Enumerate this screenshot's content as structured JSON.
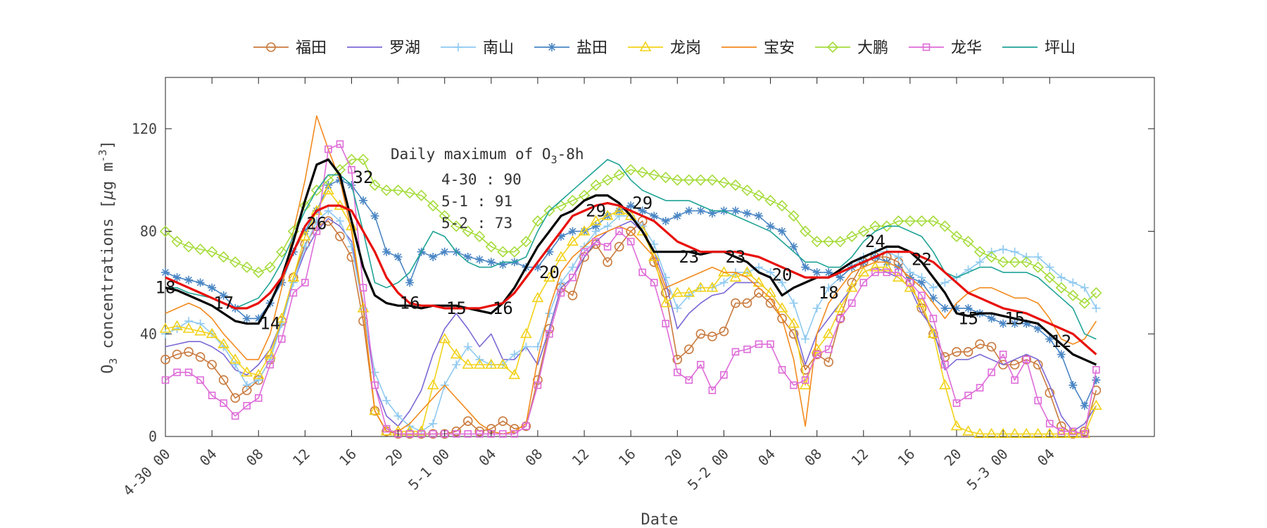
{
  "chart_data": {
    "type": "line",
    "title": "",
    "xlabel": "Date",
    "ylabel": "O3 concentrations [μg m-3]",
    "ylabel_parts": {
      "main": "O",
      "sub": "3",
      "rest": " concentrations [",
      "mu": "μ",
      "unit": "g m",
      "sup": "-3",
      "close": "]"
    },
    "ylim": [
      0,
      140
    ],
    "yticks": [
      0,
      40,
      80,
      120
    ],
    "xlim": [
      0,
      85
    ],
    "x_unit": "hours since 4-30 00",
    "xticks": [
      {
        "x": 0,
        "label": "4-30 00"
      },
      {
        "x": 4,
        "label": "04"
      },
      {
        "x": 8,
        "label": "08"
      },
      {
        "x": 12,
        "label": "12"
      },
      {
        "x": 16,
        "label": "16"
      },
      {
        "x": 20,
        "label": "20"
      },
      {
        "x": 24,
        "label": "5-1 00"
      },
      {
        "x": 28,
        "label": "04"
      },
      {
        "x": 32,
        "label": "08"
      },
      {
        "x": 36,
        "label": "12"
      },
      {
        "x": 40,
        "label": "16"
      },
      {
        "x": 44,
        "label": "20"
      },
      {
        "x": 48,
        "label": "5-2 00"
      },
      {
        "x": 52,
        "label": "04"
      },
      {
        "x": 56,
        "label": "08"
      },
      {
        "x": 60,
        "label": "12"
      },
      {
        "x": 64,
        "label": "16"
      },
      {
        "x": 68,
        "label": "20"
      },
      {
        "x": 72,
        "label": "5-3 00"
      },
      {
        "x": 76,
        "label": "04"
      }
    ],
    "grid": false,
    "legend_position": "top",
    "annotation": {
      "title_main": "Daily maximum of O",
      "title_sub": "3",
      "title_rest": "-8h",
      "lines": [
        "4-30 : 90",
        "5-1 : 91",
        "5-2 : 73"
      ]
    },
    "series": [
      {
        "name": "福田",
        "color": "#c97a3e",
        "marker": "circle",
        "values": [
          30,
          32,
          33,
          31,
          28,
          22,
          15,
          18,
          22,
          30,
          45,
          62,
          75,
          82,
          84,
          78,
          70,
          45,
          10,
          2,
          1,
          1,
          1,
          1,
          1,
          2,
          6,
          2,
          3,
          6,
          3,
          4,
          22,
          42,
          58,
          55,
          70,
          75,
          68,
          74,
          80,
          84,
          68,
          56,
          30,
          34,
          40,
          39,
          41,
          52,
          52,
          56,
          52,
          46,
          40,
          26,
          32,
          29,
          46,
          60,
          68,
          70,
          70,
          68,
          60,
          50,
          40,
          31,
          33,
          33,
          36,
          35,
          28,
          28,
          30,
          28,
          17,
          4,
          1,
          2,
          18
        ]
      },
      {
        "name": "罗湖",
        "color": "#7b68d4",
        "marker": "none",
        "values": [
          35,
          36,
          37,
          37,
          35,
          32,
          26,
          24,
          28,
          34,
          45,
          60,
          72,
          80,
          85,
          82,
          76,
          52,
          20,
          8,
          4,
          10,
          18,
          32,
          42,
          48,
          42,
          35,
          40,
          30,
          30,
          35,
          28,
          42,
          58,
          62,
          70,
          76,
          80,
          82,
          84,
          80,
          72,
          60,
          42,
          48,
          52,
          55,
          56,
          60,
          60,
          60,
          56,
          50,
          44,
          28,
          40,
          46,
          52,
          58,
          64,
          66,
          64,
          62,
          58,
          48,
          42,
          26,
          30,
          30,
          32,
          30,
          28,
          30,
          32,
          30,
          20,
          8,
          2,
          5,
          12
        ]
      },
      {
        "name": "南山",
        "color": "#8ec9f0",
        "marker": "plus",
        "values": [
          40,
          42,
          45,
          44,
          40,
          35,
          28,
          20,
          22,
          30,
          44,
          60,
          74,
          84,
          88,
          84,
          74,
          50,
          25,
          14,
          8,
          4,
          2,
          5,
          20,
          28,
          35,
          30,
          28,
          28,
          32,
          35,
          35,
          48,
          60,
          66,
          74,
          80,
          82,
          86,
          86,
          82,
          75,
          62,
          50,
          55,
          58,
          58,
          60,
          64,
          64,
          66,
          64,
          60,
          52,
          38,
          50,
          58,
          62,
          66,
          70,
          72,
          72,
          70,
          64,
          62,
          58,
          60,
          62,
          65,
          68,
          72,
          73,
          72,
          70,
          70,
          66,
          62,
          60,
          58,
          50
        ]
      },
      {
        "name": "盐田",
        "color": "#4a86c4",
        "marker": "asterisk",
        "values": [
          64,
          62,
          61,
          60,
          58,
          55,
          50,
          46,
          46,
          52,
          60,
          72,
          80,
          88,
          98,
          100,
          98,
          92,
          86,
          72,
          70,
          60,
          72,
          70,
          72,
          72,
          70,
          69,
          68,
          67,
          68,
          66,
          66,
          72,
          78,
          80,
          80,
          82,
          86,
          88,
          90,
          88,
          86,
          84,
          86,
          88,
          88,
          87,
          88,
          88,
          87,
          86,
          82,
          80,
          74,
          66,
          64,
          64,
          62,
          66,
          68,
          70,
          68,
          66,
          62,
          60,
          54,
          50,
          50,
          50,
          48,
          46,
          44,
          44,
          44,
          42,
          38,
          32,
          20,
          12,
          22
        ]
      },
      {
        "name": "龙岗",
        "color": "#f2d21a",
        "marker": "triangle",
        "values": [
          42,
          43,
          42,
          41,
          40,
          36,
          30,
          25,
          24,
          32,
          46,
          62,
          78,
          88,
          96,
          90,
          82,
          50,
          10,
          2,
          2,
          2,
          2,
          20,
          38,
          32,
          28,
          28,
          28,
          28,
          24,
          40,
          54,
          62,
          70,
          76,
          80,
          84,
          86,
          88,
          86,
          80,
          70,
          52,
          56,
          56,
          58,
          58,
          64,
          62,
          64,
          60,
          56,
          50,
          44,
          20,
          34,
          40,
          50,
          58,
          64,
          66,
          66,
          62,
          58,
          52,
          40,
          20,
          4,
          2,
          1,
          1,
          1,
          1,
          1,
          1,
          1,
          1,
          1,
          1,
          12
        ]
      },
      {
        "name": "宝安",
        "color": "#f28a1d",
        "marker": "none",
        "values": [
          48,
          50,
          52,
          50,
          46,
          40,
          35,
          30,
          30,
          40,
          58,
          80,
          100,
          125,
          112,
          100,
          80,
          50,
          10,
          2,
          2,
          5,
          10,
          15,
          20,
          15,
          10,
          5,
          2,
          1,
          2,
          5,
          30,
          50,
          64,
          70,
          74,
          78,
          80,
          82,
          80,
          75,
          70,
          58,
          60,
          62,
          64,
          66,
          64,
          64,
          62,
          58,
          54,
          46,
          30,
          4,
          40,
          52,
          58,
          64,
          66,
          68,
          68,
          66,
          62,
          58,
          52,
          46,
          52,
          56,
          58,
          58,
          56,
          54,
          54,
          52,
          46,
          38,
          36,
          38,
          45
        ]
      },
      {
        "name": "大鹏",
        "color": "#a6dc3c",
        "marker": "diamond",
        "values": [
          80,
          76,
          74,
          73,
          72,
          70,
          68,
          66,
          64,
          66,
          72,
          80,
          90,
          96,
          100,
          104,
          108,
          108,
          98,
          96,
          96,
          95,
          94,
          90,
          86,
          82,
          80,
          78,
          74,
          72,
          72,
          76,
          84,
          88,
          90,
          92,
          94,
          98,
          100,
          102,
          104,
          103,
          102,
          101,
          100,
          100,
          100,
          100,
          99,
          98,
          96,
          94,
          92,
          90,
          86,
          80,
          76,
          76,
          76,
          78,
          80,
          82,
          82,
          84,
          84,
          84,
          84,
          82,
          78,
          76,
          72,
          70,
          68,
          68,
          68,
          66,
          62,
          58,
          55,
          52,
          56
        ]
      },
      {
        "name": "龙华",
        "color": "#de6cd8",
        "marker": "square",
        "values": [
          22,
          25,
          25,
          22,
          16,
          13,
          8,
          12,
          15,
          28,
          38,
          56,
          60,
          80,
          112,
          114,
          104,
          58,
          20,
          3,
          1,
          1,
          1,
          1,
          1,
          1,
          1,
          1,
          1,
          1,
          1,
          4,
          20,
          40,
          56,
          62,
          72,
          76,
          74,
          80,
          76,
          64,
          60,
          44,
          25,
          22,
          28,
          18,
          24,
          33,
          34,
          36,
          36,
          26,
          20,
          22,
          32,
          34,
          46,
          52,
          60,
          64,
          64,
          64,
          60,
          55,
          46,
          28,
          13,
          16,
          19,
          25,
          32,
          22,
          30,
          14,
          5,
          2,
          2,
          1,
          26
        ]
      },
      {
        "name": "坪山",
        "color": "#1fa396",
        "marker": "none",
        "values": [
          58,
          58,
          56,
          55,
          54,
          52,
          50,
          52,
          54,
          60,
          68,
          78,
          88,
          96,
          102,
          102,
          98,
          80,
          60,
          58,
          60,
          64,
          72,
          80,
          78,
          72,
          68,
          66,
          66,
          68,
          68,
          70,
          80,
          88,
          92,
          96,
          100,
          104,
          108,
          106,
          100,
          96,
          94,
          92,
          92,
          92,
          90,
          88,
          88,
          86,
          84,
          82,
          80,
          76,
          72,
          68,
          68,
          66,
          66,
          70,
          76,
          80,
          82,
          82,
          80,
          78,
          72,
          64,
          62,
          64,
          66,
          66,
          64,
          64,
          64,
          62,
          58,
          54,
          50,
          40,
          38
        ]
      },
      {
        "name": "",
        "color": "#000000",
        "marker": "none",
        "width": 3.2,
        "values": [
          58,
          57,
          55,
          53,
          51,
          48,
          45,
          44,
          44,
          52,
          62,
          76,
          92,
          106,
          108,
          102,
          84,
          66,
          55,
          52,
          51,
          51,
          50,
          51,
          51,
          51,
          50,
          49,
          48,
          52,
          58,
          66,
          74,
          80,
          86,
          88,
          92,
          94,
          94,
          91,
          86,
          80,
          72,
          72,
          72,
          72,
          71,
          72,
          72,
          70,
          68,
          64,
          62,
          55,
          58,
          60,
          62,
          62,
          65,
          68,
          70,
          72,
          74,
          74,
          72,
          68,
          62,
          56,
          48,
          47,
          48,
          48,
          47,
          46,
          45,
          44,
          40,
          36,
          32,
          30,
          28
        ]
      },
      {
        "name": "",
        "color": "#e8100a",
        "marker": "none",
        "width": 3.2,
        "values": [
          62,
          60,
          58,
          56,
          54,
          52,
          50,
          50,
          52,
          56,
          62,
          72,
          82,
          88,
          90,
          90,
          88,
          80,
          72,
          62,
          56,
          52,
          51,
          51,
          50,
          50,
          50,
          50,
          51,
          52,
          56,
          62,
          68,
          74,
          80,
          86,
          88,
          90,
          91,
          90,
          88,
          86,
          84,
          80,
          76,
          74,
          72,
          72,
          72,
          72,
          71,
          70,
          68,
          66,
          64,
          62,
          62,
          62,
          64,
          66,
          68,
          70,
          72,
          72,
          72,
          70,
          68,
          64,
          60,
          56,
          54,
          52,
          50,
          49,
          48,
          46,
          44,
          42,
          40,
          36,
          32
        ]
      }
    ],
    "point_labels": [
      {
        "x": 0,
        "y": 58,
        "text": "18"
      },
      {
        "x": 5,
        "y": 52,
        "text": "17"
      },
      {
        "x": 9,
        "y": 44,
        "text": "14"
      },
      {
        "x": 13,
        "y": 83,
        "text": "26"
      },
      {
        "x": 17,
        "y": 101,
        "text": "32"
      },
      {
        "x": 21,
        "y": 52,
        "text": "16"
      },
      {
        "x": 25,
        "y": 50,
        "text": "15"
      },
      {
        "x": 29,
        "y": 50,
        "text": "16"
      },
      {
        "x": 33,
        "y": 64,
        "text": "20"
      },
      {
        "x": 37,
        "y": 88,
        "text": "29"
      },
      {
        "x": 41,
        "y": 91,
        "text": "29"
      },
      {
        "x": 45,
        "y": 70,
        "text": "23"
      },
      {
        "x": 49,
        "y": 70,
        "text": "23"
      },
      {
        "x": 53,
        "y": 63,
        "text": "20"
      },
      {
        "x": 57,
        "y": 56,
        "text": "18"
      },
      {
        "x": 61,
        "y": 76,
        "text": "24"
      },
      {
        "x": 65,
        "y": 69,
        "text": "22"
      },
      {
        "x": 69,
        "y": 46,
        "text": "15"
      },
      {
        "x": 73,
        "y": 46,
        "text": "15"
      },
      {
        "x": 77,
        "y": 37,
        "text": "12"
      }
    ]
  }
}
